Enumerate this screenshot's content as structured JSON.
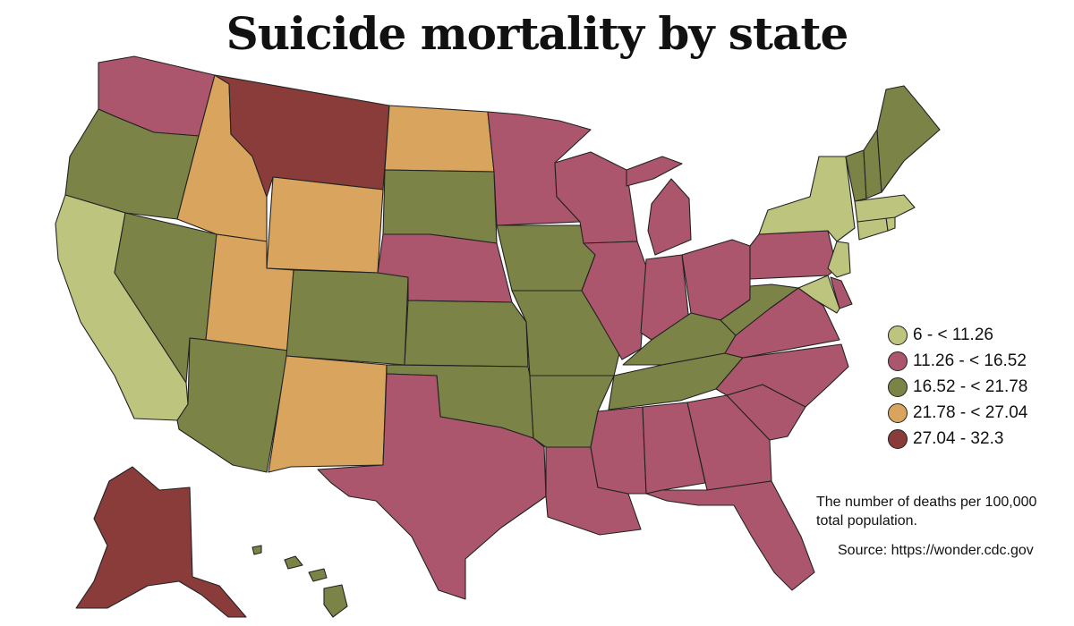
{
  "title": "Suicide mortality by state",
  "colors": {
    "bin1": "#bdc47e",
    "bin2": "#ab566c",
    "bin3": "#7b8446",
    "bin4": "#d9a45d",
    "bin5": "#8a3c3a"
  },
  "legend": [
    {
      "label": "6 - < 11.26",
      "bin": "bin1"
    },
    {
      "label": "11.26 - < 16.52",
      "bin": "bin2"
    },
    {
      "label": "16.52 - < 21.78",
      "bin": "bin3"
    },
    {
      "label": "21.78 - < 27.04",
      "bin": "bin4"
    },
    {
      "label": "27.04 - 32.3",
      "bin": "bin5"
    }
  ],
  "note": "The number of deaths per 100,000 total population.",
  "source": "Source: https://wonder.cdc.gov",
  "states": [
    {
      "id": "WA",
      "bin": "bin2"
    },
    {
      "id": "OR",
      "bin": "bin3"
    },
    {
      "id": "CA",
      "bin": "bin1"
    },
    {
      "id": "NV",
      "bin": "bin3"
    },
    {
      "id": "ID",
      "bin": "bin4"
    },
    {
      "id": "MT",
      "bin": "bin5"
    },
    {
      "id": "WY",
      "bin": "bin4"
    },
    {
      "id": "UT",
      "bin": "bin4"
    },
    {
      "id": "AZ",
      "bin": "bin3"
    },
    {
      "id": "CO",
      "bin": "bin3"
    },
    {
      "id": "NM",
      "bin": "bin4"
    },
    {
      "id": "ND",
      "bin": "bin4"
    },
    {
      "id": "SD",
      "bin": "bin3"
    },
    {
      "id": "NE",
      "bin": "bin2"
    },
    {
      "id": "KS",
      "bin": "bin3"
    },
    {
      "id": "OK",
      "bin": "bin3"
    },
    {
      "id": "TX",
      "bin": "bin2"
    },
    {
      "id": "MN",
      "bin": "bin2"
    },
    {
      "id": "IA",
      "bin": "bin3"
    },
    {
      "id": "MO",
      "bin": "bin3"
    },
    {
      "id": "AR",
      "bin": "bin3"
    },
    {
      "id": "LA",
      "bin": "bin2"
    },
    {
      "id": "WI",
      "bin": "bin2"
    },
    {
      "id": "IL",
      "bin": "bin2"
    },
    {
      "id": "MI",
      "bin": "bin2"
    },
    {
      "id": "IN",
      "bin": "bin2"
    },
    {
      "id": "OH",
      "bin": "bin2"
    },
    {
      "id": "KY",
      "bin": "bin3"
    },
    {
      "id": "TN",
      "bin": "bin3"
    },
    {
      "id": "MS",
      "bin": "bin2"
    },
    {
      "id": "AL",
      "bin": "bin2"
    },
    {
      "id": "GA",
      "bin": "bin2"
    },
    {
      "id": "FL",
      "bin": "bin2"
    },
    {
      "id": "SC",
      "bin": "bin2"
    },
    {
      "id": "NC",
      "bin": "bin2"
    },
    {
      "id": "VA",
      "bin": "bin2"
    },
    {
      "id": "WV",
      "bin": "bin3"
    },
    {
      "id": "PA",
      "bin": "bin2"
    },
    {
      "id": "NY",
      "bin": "bin1"
    },
    {
      "id": "NJ",
      "bin": "bin1"
    },
    {
      "id": "DE",
      "bin": "bin2"
    },
    {
      "id": "MD",
      "bin": "bin1"
    },
    {
      "id": "CT",
      "bin": "bin1"
    },
    {
      "id": "RI",
      "bin": "bin1"
    },
    {
      "id": "MA",
      "bin": "bin1"
    },
    {
      "id": "VT",
      "bin": "bin3"
    },
    {
      "id": "NH",
      "bin": "bin3"
    },
    {
      "id": "ME",
      "bin": "bin3"
    },
    {
      "id": "AK",
      "bin": "bin5"
    },
    {
      "id": "HI",
      "bin": "bin3"
    }
  ]
}
